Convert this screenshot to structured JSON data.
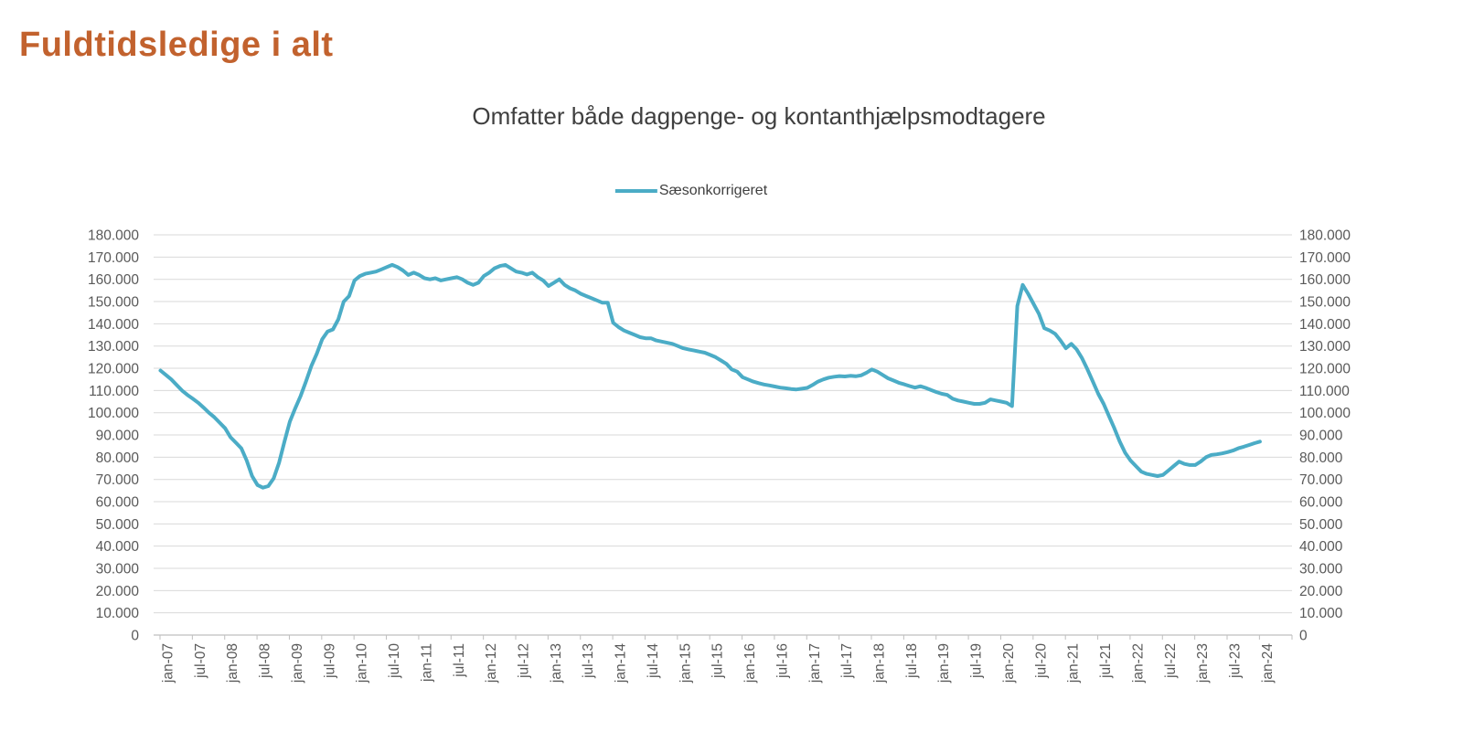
{
  "page": {
    "title": "Fuldtidsledige i alt",
    "title_color": "#C2622E",
    "background": "#FFFFFF"
  },
  "chart_data": {
    "type": "line",
    "title": "Omfatter både dagpenge- og kontanthjælpsmodtagere",
    "legend": {
      "label": "Sæsonkorrigeret",
      "marker_color": "#4BACC6",
      "position": "top-center"
    },
    "line_color": "#4BACC6",
    "gridline_color": "#D9D9D9",
    "axis_line_color": "#BFBFBF",
    "axis_text_color": "#595959",
    "grid": true,
    "y_axis": {
      "min": 0,
      "max": 180000,
      "step": 10000,
      "sides": "both",
      "tick_labels": [
        "180.000",
        "170.000",
        "160.000",
        "150.000",
        "140.000",
        "130.000",
        "120.000",
        "110.000",
        "100.000",
        "90.000",
        "80.000",
        "70.000",
        "60.000",
        "50.000",
        "40.000",
        "30.000",
        "20.000",
        "10.000",
        "0"
      ]
    },
    "x_axis": {
      "label_rotation_deg": 90,
      "tick_interval_months": 6,
      "tick_labels": [
        "jan-07",
        "jul-07",
        "jan-08",
        "jul-08",
        "jan-09",
        "jul-09",
        "jan-10",
        "jul-10",
        "jan-11",
        "jul-11",
        "jan-12",
        "jul-12",
        "jan-13",
        "jul-13",
        "jan-14",
        "jul-14",
        "jan-15",
        "jul-15",
        "jan-16",
        "jul-16",
        "jan-17",
        "jul-17",
        "jan-18",
        "jul-18",
        "jan-19",
        "jul-19",
        "jan-20",
        "jul-20",
        "jan-21",
        "jul-21",
        "jan-22",
        "jul-22",
        "jan-23",
        "jul-23",
        "jan-24"
      ]
    },
    "series": [
      {
        "name": "Sæsonkorrigeret",
        "frequency": "monthly",
        "start": "jan-07",
        "end": "jan-24",
        "values": [
          119000,
          117000,
          115000,
          112500,
          110000,
          108000,
          106300,
          104500,
          102300,
          100000,
          98000,
          95500,
          93000,
          89000,
          86500,
          84000,
          78500,
          71500,
          67500,
          66300,
          67000,
          70500,
          77500,
          87000,
          96000,
          102000,
          107500,
          114000,
          121000,
          126500,
          133000,
          136500,
          137500,
          142000,
          150000,
          152500,
          159500,
          161500,
          162500,
          163000,
          163500,
          164500,
          165500,
          166500,
          165500,
          164000,
          162000,
          163000,
          162000,
          160500,
          160000,
          160500,
          159500,
          160000,
          160500,
          161000,
          160000,
          158500,
          157500,
          158500,
          161500,
          163000,
          165000,
          166000,
          166500,
          165000,
          163500,
          163000,
          162200,
          163000,
          161000,
          159500,
          157000,
          158500,
          160000,
          157500,
          156000,
          155000,
          153500,
          152500,
          151500,
          150500,
          149500,
          149500,
          140500,
          138500,
          137000,
          136000,
          135000,
          134000,
          133500,
          133500,
          132500,
          132000,
          131500,
          131000,
          130000,
          129000,
          128500,
          128000,
          127500,
          127000,
          126000,
          125000,
          123500,
          122000,
          119500,
          118500,
          116000,
          115000,
          114000,
          113300,
          112700,
          112300,
          111800,
          111300,
          111000,
          110700,
          110500,
          110800,
          111200,
          112500,
          114000,
          115000,
          115800,
          116200,
          116500,
          116300,
          116600,
          116400,
          116800,
          118000,
          119500,
          118500,
          117000,
          115500,
          114500,
          113500,
          112800,
          112000,
          111300,
          111900,
          111200,
          110200,
          109300,
          108500,
          108000,
          106300,
          105500,
          105000,
          104500,
          104000,
          104000,
          104500,
          106000,
          105500,
          105000,
          104500,
          103000,
          148000,
          157500,
          153500,
          149000,
          144500,
          138000,
          137000,
          135500,
          132500,
          129000,
          131000,
          128500,
          124500,
          119500,
          114000,
          108500,
          104000,
          98500,
          93000,
          87000,
          82000,
          78500,
          76000,
          73500,
          72500,
          72000,
          71500,
          72000,
          74000,
          76000,
          78000,
          77000,
          76500,
          76500,
          78000,
          80000,
          81000,
          81300,
          81700,
          82300,
          83000,
          84000,
          84700,
          85500,
          86300,
          87000
        ]
      }
    ]
  }
}
